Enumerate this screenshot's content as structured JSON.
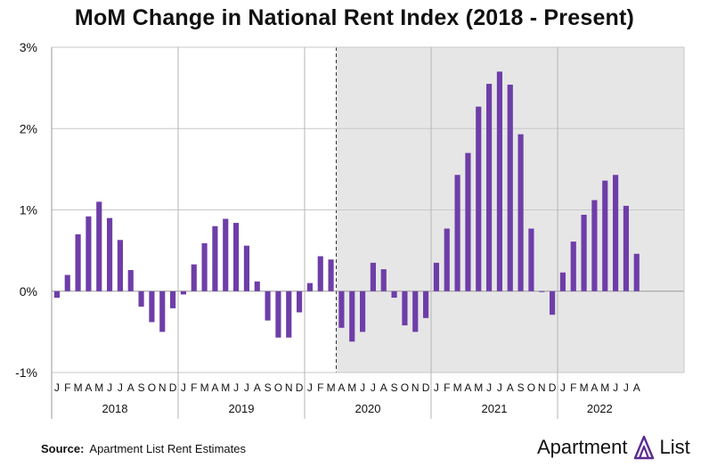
{
  "chart_data": {
    "type": "bar",
    "title": "MoM Change in National Rent Index (2018 - Present)",
    "ylabel": "",
    "xlabel": "",
    "ylim": [
      -1,
      3
    ],
    "yticks": [
      "-1%",
      "0%",
      "1%",
      "2%",
      "3%"
    ],
    "ytick_values": [
      -1,
      0,
      1,
      2,
      3
    ],
    "years": [
      "2018",
      "2019",
      "2020",
      "2021",
      "2022"
    ],
    "month_labels": [
      "J",
      "F",
      "M",
      "A",
      "M",
      "J",
      "J",
      "A",
      "S",
      "O",
      "N",
      "D"
    ],
    "shaded_from": "2020-04",
    "bar_color": "#6e3ea8",
    "shade_color": "#e6e6e6",
    "series": [
      {
        "name": "",
        "values": [
          -0.08,
          0.2,
          0.7,
          0.92,
          1.1,
          0.9,
          0.63,
          0.26,
          -0.19,
          -0.38,
          -0.5,
          -0.21,
          -0.04,
          0.33,
          0.59,
          0.8,
          0.89,
          0.84,
          0.56,
          0.12,
          -0.36,
          -0.57,
          -0.57,
          -0.26,
          0.1,
          0.43,
          0.39,
          -0.45,
          -0.62,
          -0.5,
          0.35,
          0.27,
          -0.08,
          -0.42,
          -0.5,
          -0.33,
          0.35,
          0.77,
          1.43,
          1.7,
          2.27,
          2.55,
          2.7,
          2.54,
          1.93,
          0.77,
          0.0,
          -0.29,
          0.23,
          0.61,
          0.94,
          1.12,
          1.36,
          1.43,
          1.05,
          0.46
        ]
      }
    ]
  },
  "footer": {
    "source_label": "Source:",
    "source_text": "Apartment List Rent Estimates",
    "brand_left": "Apartment",
    "brand_right": "List"
  }
}
